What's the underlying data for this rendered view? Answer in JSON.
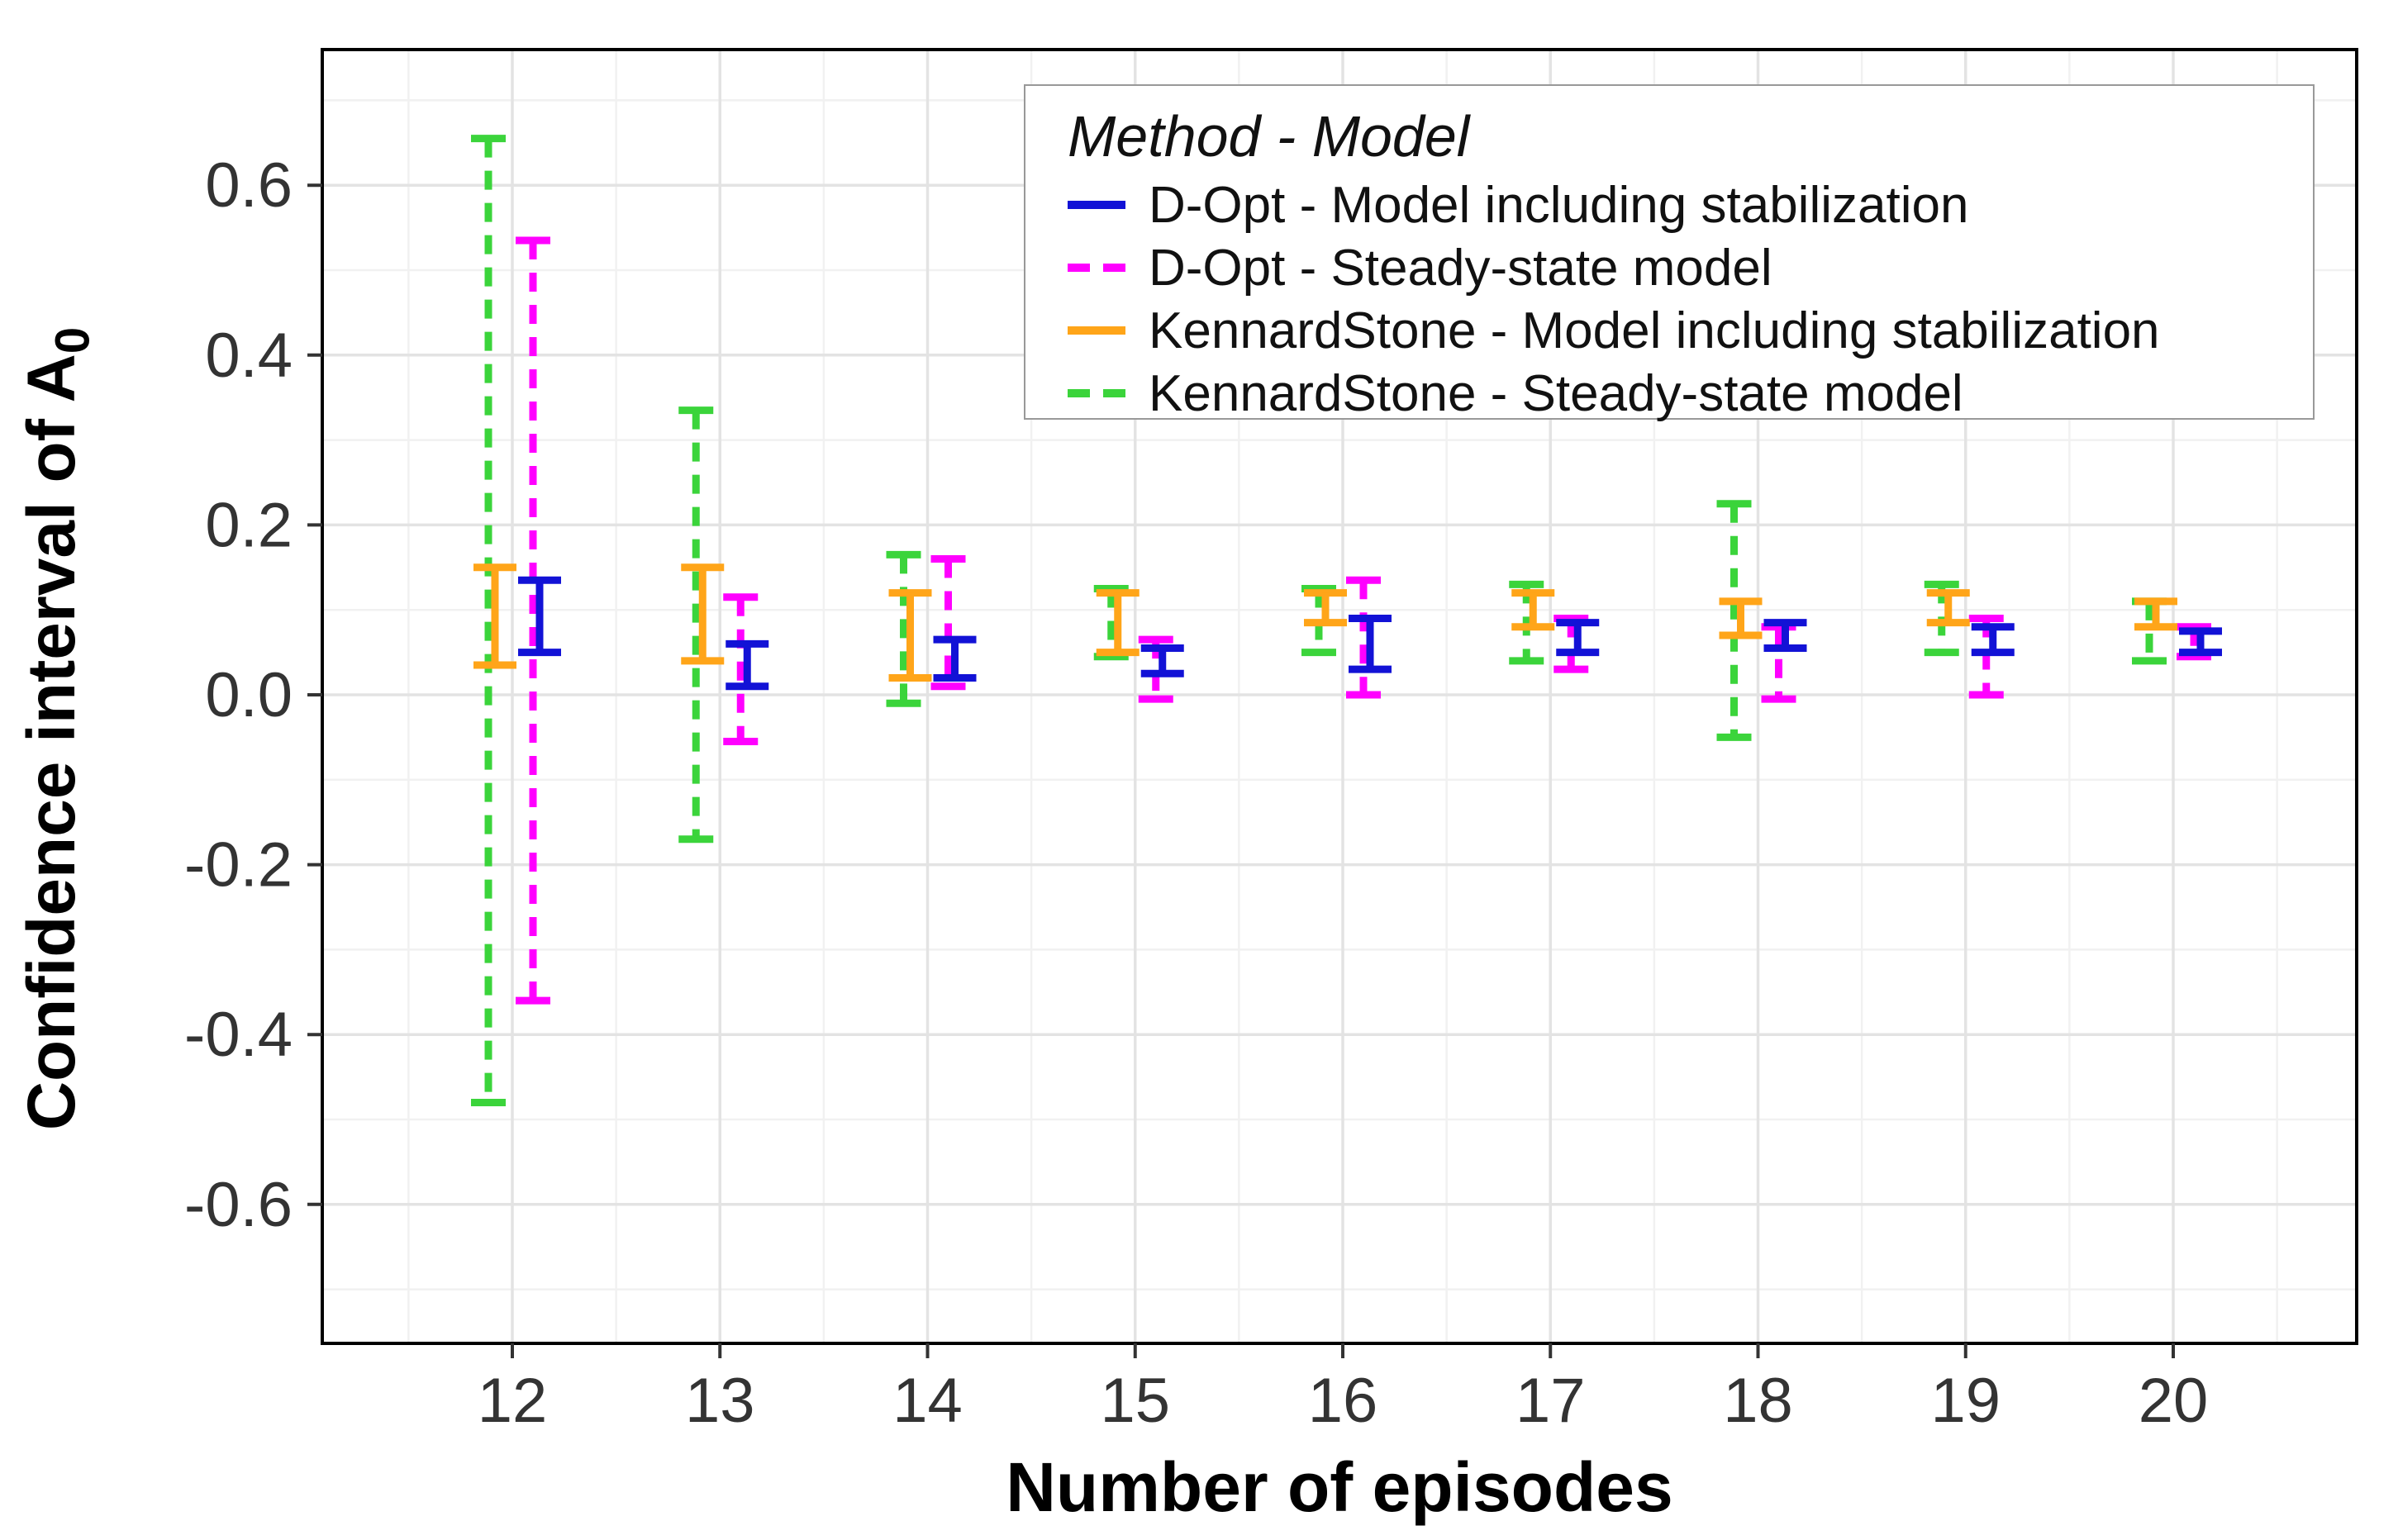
{
  "chart_data": {
    "type": "errorbar",
    "title": "",
    "xlabel": "Number of episodes",
    "ylabel_main": "Confidence interval of A",
    "ylabel_sub": "0",
    "x_categories": [
      12,
      13,
      14,
      15,
      16,
      17,
      18,
      19,
      20
    ],
    "yticks": [
      0.6,
      0.4,
      0.2,
      0.0,
      -0.2,
      -0.4,
      -0.6
    ],
    "ytick_labels": [
      "0.6",
      "0.4",
      "0.2",
      "0.0",
      "-0.2",
      "-0.4",
      "-0.6"
    ],
    "ylim": [
      -0.76,
      0.76
    ],
    "grid": true,
    "panel_border_color": "#000000",
    "major_grid_color": "#e3e3e3",
    "minor_grid_color": "#f1f1f1",
    "legend": {
      "title": "Method - Model",
      "position": "top-right-inside"
    },
    "series": [
      {
        "name": "D-Opt - Model including stabilization",
        "color": "#1212d6",
        "linetype": "solid",
        "group": "D-Opt",
        "intervals": [
          [
            0.05,
            0.135
          ],
          [
            0.01,
            0.06
          ],
          [
            0.02,
            0.065
          ],
          [
            0.025,
            0.055
          ],
          [
            0.03,
            0.09
          ],
          [
            0.05,
            0.085
          ],
          [
            0.055,
            0.085
          ],
          [
            0.05,
            0.08
          ],
          [
            0.05,
            0.075
          ]
        ]
      },
      {
        "name": "D-Opt - Steady-state model",
        "color": "#ff00ff",
        "linetype": "dashed",
        "group": "D-Opt",
        "intervals": [
          [
            -0.36,
            0.535
          ],
          [
            -0.055,
            0.115
          ],
          [
            0.01,
            0.16
          ],
          [
            -0.005,
            0.065
          ],
          [
            0.0,
            0.135
          ],
          [
            0.03,
            0.09
          ],
          [
            -0.005,
            0.08
          ],
          [
            0.0,
            0.09
          ],
          [
            0.045,
            0.08
          ]
        ]
      },
      {
        "name": "KennardStone - Model including stabilization",
        "color": "#ffa519",
        "linetype": "solid",
        "group": "KennardStone",
        "intervals": [
          [
            0.035,
            0.15
          ],
          [
            0.04,
            0.15
          ],
          [
            0.02,
            0.12
          ],
          [
            0.05,
            0.12
          ],
          [
            0.085,
            0.12
          ],
          [
            0.08,
            0.12
          ],
          [
            0.07,
            0.11
          ],
          [
            0.085,
            0.12
          ],
          [
            0.08,
            0.11
          ]
        ]
      },
      {
        "name": "KennardStone - Steady-state model",
        "color": "#3bd43b",
        "linetype": "dashed",
        "group": "KennardStone",
        "intervals": [
          [
            -0.48,
            0.655
          ],
          [
            -0.17,
            0.335
          ],
          [
            -0.01,
            0.165
          ],
          [
            0.045,
            0.125
          ],
          [
            0.05,
            0.125
          ],
          [
            0.04,
            0.13
          ],
          [
            -0.05,
            0.225
          ],
          [
            0.05,
            0.13
          ],
          [
            0.04,
            0.11
          ]
        ]
      }
    ]
  }
}
